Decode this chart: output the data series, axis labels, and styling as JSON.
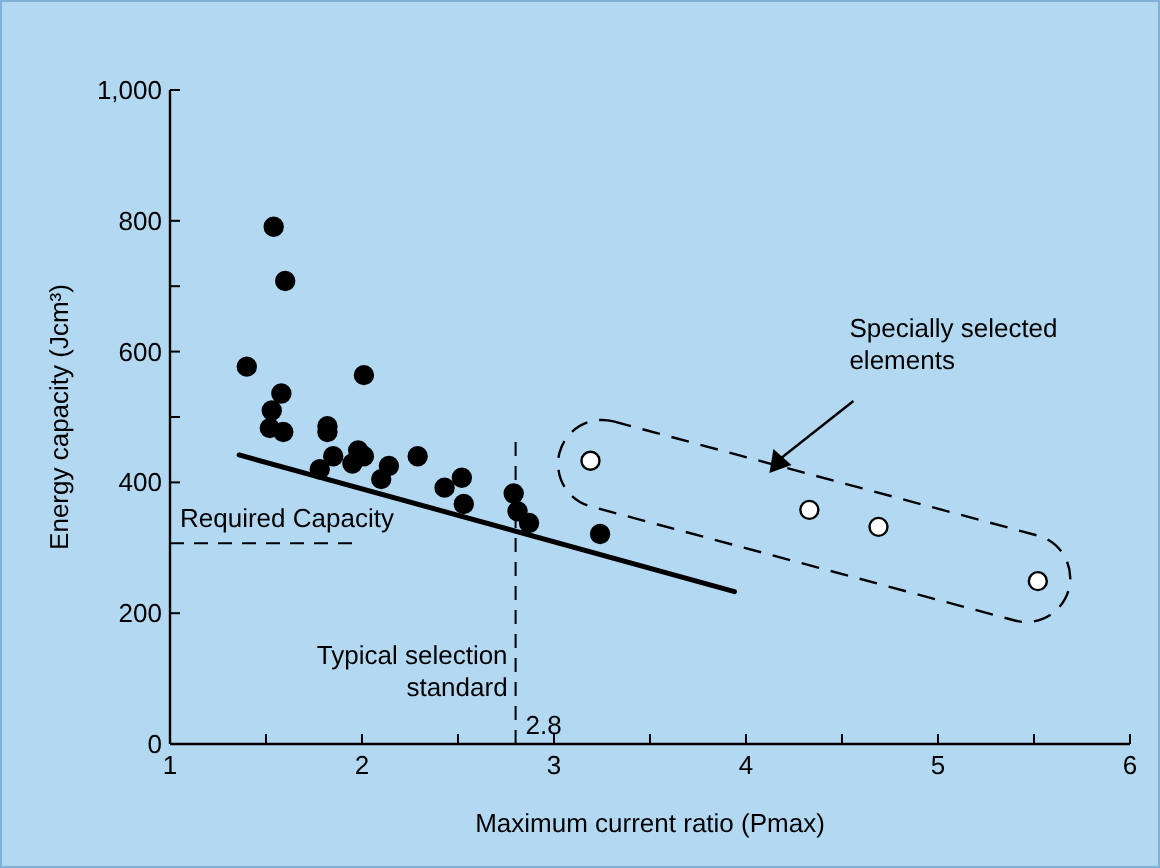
{
  "chart_data": {
    "type": "scatter",
    "xlabel": "Maximum current ratio (Pmax)",
    "ylabel": "Energy capacity (Jcm³)",
    "xlim": [
      1,
      6
    ],
    "xticks": [
      1,
      {
        "value": 1.5,
        "label": null
      },
      2,
      {
        "value": 2.5,
        "label": null
      },
      3,
      {
        "value": 3.5,
        "label": null
      },
      4,
      {
        "value": 4.5,
        "label": null
      },
      5,
      {
        "value": 5.5,
        "label": null
      },
      6
    ],
    "ylim": [
      0,
      1000
    ],
    "yticks": [
      0,
      200,
      400,
      {
        "value": 500,
        "label": null
      },
      600,
      {
        "value": 700,
        "label": null
      },
      800,
      {
        "value": 1000,
        "label": "1,000"
      }
    ],
    "grid": false,
    "series": [
      {
        "color": "#000000",
        "marker": "circle",
        "x": [
          1.4,
          1.54,
          1.6,
          1.53,
          1.58,
          1.52,
          1.59,
          1.82,
          1.82,
          2.01,
          1.85,
          1.98,
          2.01,
          1.95,
          2.29,
          2.14,
          1.78,
          2.1,
          2.43,
          2.52,
          2.53,
          2.79,
          2.81,
          2.87,
          3.24
        ],
        "values": [
          577,
          791,
          708,
          510,
          536,
          483,
          477,
          486,
          477,
          564,
          440,
          449,
          440,
          429,
          440,
          425,
          420,
          405,
          392,
          407,
          367,
          383,
          356,
          338,
          321
        ]
      },
      {
        "color": "#ffffff",
        "marker": "circle",
        "x": [
          3.19,
          4.33,
          4.69,
          5.52
        ],
        "values": [
          433,
          358,
          332,
          249
        ]
      },
      {
        "type": "line",
        "color": "#000000",
        "line_style": "solid",
        "marker": "none",
        "x": [
          1.36,
          3.94
        ],
        "values": [
          442,
          233
        ]
      }
    ],
    "ref_lines": [
      {
        "axis": "y",
        "value": 307,
        "label": "Required Capacity",
        "line_style": "dashed"
      },
      {
        "axis": "x",
        "value": 2.8,
        "label": "Typical selection standard",
        "line_style": "dashed"
      }
    ],
    "annotations": [
      "Specially selected elements",
      {
        "text": "2.8",
        "x": 2.8,
        "y": 0
      }
    ]
  }
}
